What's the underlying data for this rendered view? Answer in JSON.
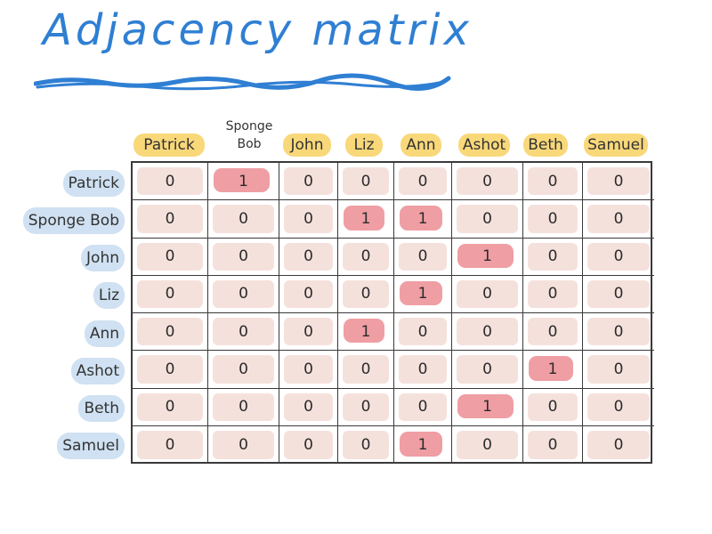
{
  "title": "Adjacency matrix",
  "colors": {
    "title": "#2f7fd3",
    "column_highlight": "#f9d87a",
    "row_highlight": "#cfe1f2",
    "cell_zero": "#f5e1dc",
    "cell_one": "#ef9ea4"
  },
  "columns": [
    "Patrick",
    "Sponge Bob",
    "John",
    "Liz",
    "Ann",
    "Ashot",
    "Beth",
    "Samuel"
  ],
  "rows": [
    "Patrick",
    "Sponge Bob",
    "John",
    "Liz",
    "Ann",
    "Ashot",
    "Beth",
    "Samuel"
  ],
  "matrix": [
    [
      0,
      1,
      0,
      0,
      0,
      0,
      0,
      0
    ],
    [
      0,
      0,
      0,
      1,
      1,
      0,
      0,
      0
    ],
    [
      0,
      0,
      0,
      0,
      0,
      1,
      0,
      0
    ],
    [
      0,
      0,
      0,
      0,
      1,
      0,
      0,
      0
    ],
    [
      0,
      0,
      0,
      1,
      0,
      0,
      0,
      0
    ],
    [
      0,
      0,
      0,
      0,
      0,
      0,
      1,
      0
    ],
    [
      0,
      0,
      0,
      0,
      0,
      1,
      0,
      0
    ],
    [
      0,
      0,
      0,
      0,
      1,
      0,
      0,
      0
    ]
  ]
}
